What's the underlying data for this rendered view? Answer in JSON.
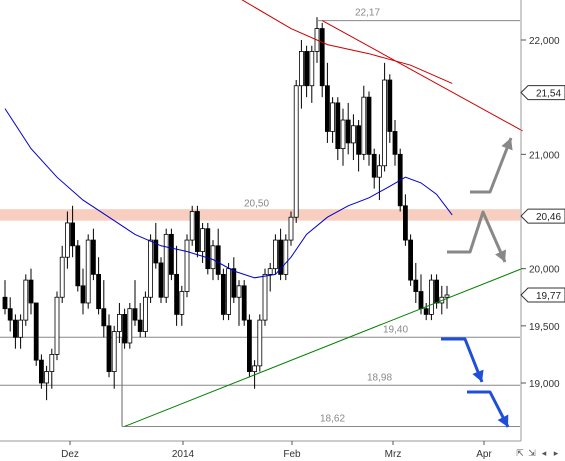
{
  "chart_data": {
    "type": "candlestick",
    "title": "",
    "xlabel": "",
    "ylabel": "",
    "x_tick_labels": [
      "Dez",
      "2014",
      "Feb",
      "Mrz",
      "Apr"
    ],
    "y_tick_labels": [
      "22,000",
      "21,000",
      "20,000",
      "19,500",
      "19,000"
    ],
    "y_tick_values": [
      22000,
      21000,
      20000,
      19500,
      19000
    ],
    "ylim": [
      18550,
      22300
    ],
    "grid": false,
    "current_price_tag": {
      "label": "19,77",
      "value": 19770
    },
    "resistance_tags": [
      {
        "label": "21,54",
        "value": 21540
      },
      {
        "label": "20,46",
        "value": 20460
      }
    ],
    "horizontal_levels": [
      {
        "label": "22,17",
        "value": 22170
      },
      {
        "label": "20,50",
        "value": 20500
      },
      {
        "label": "19,40",
        "value": 19400
      },
      {
        "label": "18,98",
        "value": 18980
      },
      {
        "label": "18,62",
        "value": 18620
      }
    ],
    "resistance_zone": [
      20420,
      20520
    ],
    "candles": [
      [
        19.75,
        19.9,
        19.6,
        19.65
      ],
      [
        19.65,
        19.75,
        19.45,
        19.55
      ],
      [
        19.55,
        19.6,
        19.3,
        19.4
      ],
      [
        19.4,
        19.6,
        19.3,
        19.55
      ],
      [
        19.55,
        19.95,
        19.5,
        19.9
      ],
      [
        19.9,
        20.0,
        19.6,
        19.7
      ],
      [
        19.7,
        19.7,
        19.15,
        19.2
      ],
      [
        19.2,
        19.25,
        18.95,
        19.0
      ],
      [
        19.0,
        19.15,
        18.85,
        19.1
      ],
      [
        19.1,
        19.3,
        18.95,
        19.25
      ],
      [
        19.25,
        19.8,
        19.2,
        19.75
      ],
      [
        19.75,
        20.2,
        19.7,
        20.1
      ],
      [
        20.1,
        20.5,
        20.0,
        20.4
      ],
      [
        20.4,
        20.55,
        20.1,
        20.2
      ],
      [
        20.2,
        20.25,
        19.8,
        19.85
      ],
      [
        19.85,
        20.0,
        19.6,
        19.7
      ],
      [
        19.7,
        20.3,
        19.65,
        20.25
      ],
      [
        20.25,
        20.35,
        19.9,
        19.95
      ],
      [
        19.95,
        20.1,
        19.6,
        19.65
      ],
      [
        19.65,
        19.9,
        19.4,
        19.5
      ],
      [
        19.5,
        19.6,
        19.05,
        19.1
      ],
      [
        19.1,
        19.5,
        18.95,
        19.45
      ],
      [
        19.45,
        19.7,
        19.35,
        19.6
      ],
      [
        19.6,
        19.65,
        19.3,
        19.35
      ],
      [
        19.35,
        19.7,
        19.3,
        19.65
      ],
      [
        19.65,
        19.9,
        19.5,
        19.55
      ],
      [
        19.55,
        19.7,
        19.4,
        19.45
      ],
      [
        19.45,
        19.8,
        19.4,
        19.75
      ],
      [
        19.75,
        20.3,
        19.7,
        20.25
      ],
      [
        20.25,
        20.4,
        20.0,
        20.05
      ],
      [
        20.05,
        20.1,
        19.7,
        19.75
      ],
      [
        19.75,
        20.35,
        19.7,
        20.3
      ],
      [
        20.3,
        20.35,
        19.9,
        19.95
      ],
      [
        19.95,
        20.2,
        19.5,
        19.6
      ],
      [
        19.6,
        19.85,
        19.5,
        19.8
      ],
      [
        19.8,
        20.3,
        19.75,
        20.25
      ],
      [
        20.25,
        20.55,
        20.2,
        20.5
      ],
      [
        20.5,
        20.55,
        20.1,
        20.15
      ],
      [
        20.15,
        20.4,
        20.05,
        20.35
      ],
      [
        20.35,
        20.4,
        19.95,
        20.0
      ],
      [
        20.0,
        20.25,
        19.9,
        20.2
      ],
      [
        20.2,
        20.35,
        19.9,
        19.95
      ],
      [
        19.95,
        20.0,
        19.55,
        19.6
      ],
      [
        19.6,
        20.05,
        19.55,
        20.0
      ],
      [
        20.0,
        20.1,
        19.7,
        19.75
      ],
      [
        19.75,
        19.9,
        19.5,
        19.85
      ],
      [
        19.85,
        19.9,
        19.5,
        19.55
      ],
      [
        19.55,
        19.6,
        19.05,
        19.1
      ],
      [
        19.1,
        19.2,
        18.95,
        19.15
      ],
      [
        19.15,
        19.6,
        19.1,
        19.55
      ],
      [
        19.55,
        20.0,
        19.5,
        19.95
      ],
      [
        19.95,
        20.05,
        19.8,
        20.0
      ],
      [
        20.0,
        20.3,
        19.95,
        20.25
      ],
      [
        20.25,
        20.35,
        19.9,
        19.95
      ],
      [
        19.95,
        20.3,
        19.9,
        20.25
      ],
      [
        20.25,
        20.5,
        20.2,
        20.45
      ],
      [
        20.45,
        21.65,
        20.4,
        21.6
      ],
      [
        21.6,
        22.0,
        21.4,
        21.9
      ],
      [
        21.9,
        21.95,
        21.5,
        21.6
      ],
      [
        21.6,
        21.95,
        21.45,
        21.9
      ],
      [
        21.9,
        22.2,
        21.8,
        22.1
      ],
      [
        22.1,
        22.15,
        21.5,
        21.6
      ],
      [
        21.6,
        21.8,
        21.1,
        21.2
      ],
      [
        21.2,
        21.5,
        21.1,
        21.45
      ],
      [
        21.45,
        21.5,
        20.95,
        21.05
      ],
      [
        21.05,
        21.4,
        20.9,
        21.3
      ],
      [
        21.3,
        21.45,
        21.0,
        21.1
      ],
      [
        21.1,
        21.35,
        20.95,
        21.25
      ],
      [
        21.25,
        21.3,
        20.85,
        21.0
      ],
      [
        21.0,
        21.6,
        20.95,
        21.5
      ],
      [
        21.5,
        21.55,
        20.9,
        21.0
      ],
      [
        21.0,
        21.05,
        20.7,
        20.8
      ],
      [
        20.8,
        21.0,
        20.6,
        20.9
      ],
      [
        20.9,
        21.8,
        20.85,
        21.65
      ],
      [
        21.65,
        21.7,
        21.1,
        21.2
      ],
      [
        21.2,
        21.3,
        20.9,
        21.0
      ],
      [
        21.0,
        21.05,
        20.5,
        20.55
      ],
      [
        20.55,
        20.65,
        20.2,
        20.25
      ],
      [
        20.25,
        20.3,
        19.85,
        19.9
      ],
      [
        19.9,
        20.05,
        19.7,
        19.8
      ],
      [
        19.8,
        19.95,
        19.6,
        19.65
      ],
      [
        19.65,
        19.7,
        19.55,
        19.6
      ],
      [
        19.6,
        19.95,
        19.55,
        19.9
      ],
      [
        19.9,
        19.95,
        19.65,
        19.7
      ],
      [
        19.7,
        19.85,
        19.6,
        19.75
      ],
      [
        19.75,
        19.85,
        19.65,
        19.77
      ]
    ],
    "moving_averages": [
      {
        "color": "#cc0000",
        "values": [
          [
            0,
            23.5
          ],
          [
            20,
            23.0
          ],
          [
            40,
            22.5
          ],
          [
            55,
            22.1
          ],
          [
            62,
            21.96
          ],
          [
            70,
            21.88
          ],
          [
            78,
            21.78
          ],
          [
            86,
            21.62
          ]
        ]
      },
      {
        "color": "#0000cc",
        "values": [
          [
            0,
            21.4
          ],
          [
            5,
            21.05
          ],
          [
            10,
            20.8
          ],
          [
            15,
            20.6
          ],
          [
            20,
            20.45
          ],
          [
            25,
            20.3
          ],
          [
            30,
            20.2
          ],
          [
            35,
            20.15
          ],
          [
            40,
            20.08
          ],
          [
            44,
            19.98
          ],
          [
            48,
            19.92
          ],
          [
            52,
            19.95
          ],
          [
            55,
            20.1
          ],
          [
            58,
            20.3
          ],
          [
            62,
            20.45
          ],
          [
            66,
            20.55
          ],
          [
            70,
            20.62
          ],
          [
            74,
            20.72
          ],
          [
            77,
            20.8
          ],
          [
            80,
            20.75
          ],
          [
            83,
            20.65
          ],
          [
            86,
            20.47
          ]
        ]
      }
    ],
    "trend_lines": [
      {
        "color": "#cc0000",
        "points": [
          [
            61,
            22.17
          ],
          [
            88,
            21.1
          ]
        ]
      },
      {
        "color": "#008000",
        "points": [
          [
            23,
            18.62
          ],
          [
            88,
            19.95
          ]
        ]
      }
    ]
  }
}
